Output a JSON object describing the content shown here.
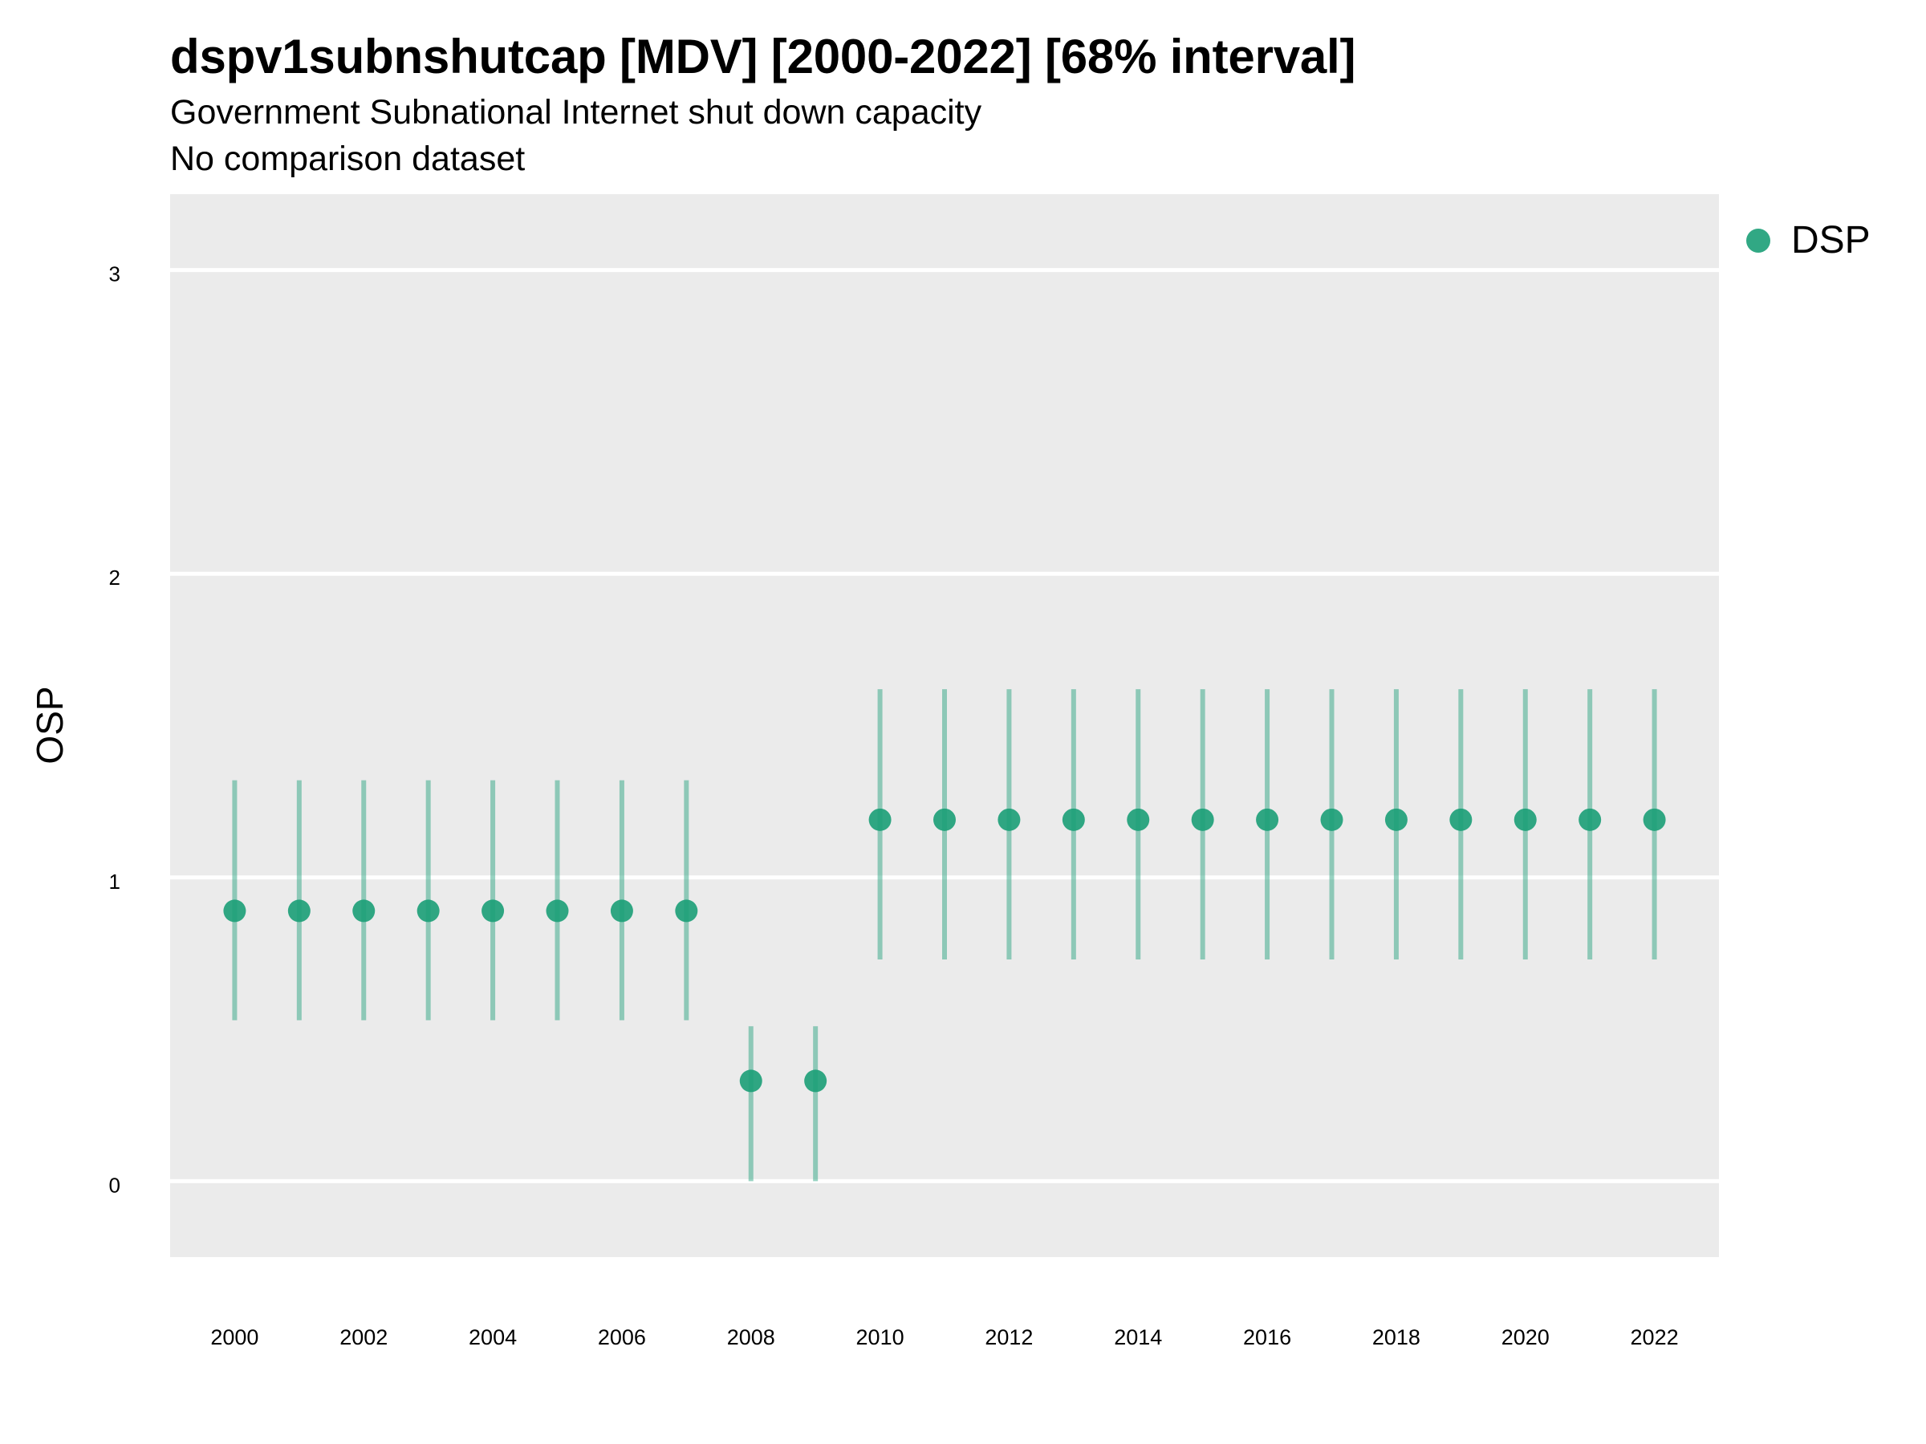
{
  "chart_data": {
    "type": "scatter",
    "title": "dspv1subnshutcap [MDV] [2000-2022] [68% interval]",
    "subtitle": "Government Subnational Internet shut down capacity",
    "caption": "No comparison dataset",
    "xlabel": "",
    "ylabel": "OSP",
    "xlim": [
      1999.0,
      2023.0
    ],
    "ylim": [
      -0.25,
      3.25
    ],
    "xticks": [
      2000,
      2002,
      2004,
      2006,
      2008,
      2010,
      2012,
      2014,
      2016,
      2018,
      2020,
      2022
    ],
    "yticks": [
      0,
      1,
      2,
      3
    ],
    "grid": true,
    "legend_position": "right",
    "series": [
      {
        "name": "DSP",
        "color": "#1b9e77",
        "x": [
          2000,
          2001,
          2002,
          2003,
          2004,
          2005,
          2006,
          2007,
          2008,
          2009,
          2010,
          2011,
          2012,
          2013,
          2014,
          2015,
          2016,
          2017,
          2018,
          2019,
          2020,
          2021,
          2022
        ],
        "y": [
          0.89,
          0.89,
          0.89,
          0.89,
          0.89,
          0.89,
          0.89,
          0.89,
          0.33,
          0.33,
          1.19,
          1.19,
          1.19,
          1.19,
          1.19,
          1.19,
          1.19,
          1.19,
          1.19,
          1.19,
          1.19,
          1.19,
          1.19
        ],
        "lower": [
          0.53,
          0.53,
          0.53,
          0.53,
          0.53,
          0.53,
          0.53,
          0.53,
          0.0,
          0.0,
          0.73,
          0.73,
          0.73,
          0.73,
          0.73,
          0.73,
          0.73,
          0.73,
          0.73,
          0.73,
          0.73,
          0.73,
          0.73
        ],
        "upper": [
          1.32,
          1.32,
          1.32,
          1.32,
          1.32,
          1.32,
          1.32,
          1.32,
          0.51,
          0.51,
          1.62,
          1.62,
          1.62,
          1.62,
          1.62,
          1.62,
          1.62,
          1.62,
          1.62,
          1.62,
          1.62,
          1.62,
          1.62
        ]
      }
    ]
  }
}
